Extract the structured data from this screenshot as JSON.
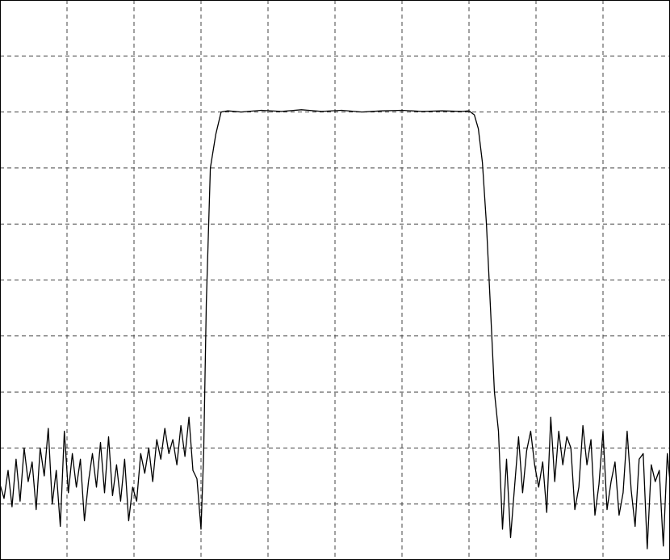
{
  "chart_data": {
    "type": "line",
    "title": "",
    "xlabel": "",
    "ylabel": "",
    "xlim": [
      0,
      10
    ],
    "ylim": [
      0,
      10
    ],
    "grid": true,
    "legend": "none",
    "colors": {
      "background": "#ffffff",
      "grid": "#444444",
      "frame": "#000000",
      "trace": "#000000"
    },
    "series": [
      {
        "x": [
          0.0,
          0.06,
          0.12,
          0.18,
          0.24,
          0.3,
          0.36,
          0.42,
          0.48,
          0.54,
          0.6,
          0.66,
          0.72,
          0.78,
          0.84,
          0.9,
          0.96,
          1.02,
          1.08,
          1.14,
          1.2,
          1.26,
          1.32,
          1.38,
          1.44,
          1.5,
          1.56,
          1.62,
          1.68,
          1.74,
          1.8,
          1.86,
          1.92,
          1.98,
          2.04,
          2.1,
          2.16,
          2.22,
          2.28,
          2.34,
          2.4,
          2.46,
          2.52,
          2.58,
          2.64,
          2.7,
          2.76,
          2.82,
          2.88,
          2.94,
          3.0,
          3.04,
          3.08,
          3.14,
          3.22,
          3.3,
          3.4,
          3.6,
          3.9,
          4.2,
          4.5,
          4.8,
          5.1,
          5.4,
          5.7,
          6.0,
          6.3,
          6.6,
          6.9,
          7.0,
          7.08,
          7.14,
          7.2,
          7.26,
          7.32,
          7.38,
          7.44,
          7.5,
          7.56,
          7.62,
          7.68,
          7.74,
          7.8,
          7.86,
          7.92,
          7.98,
          8.04,
          8.1,
          8.16,
          8.22,
          8.28,
          8.34,
          8.4,
          8.46,
          8.52,
          8.58,
          8.64,
          8.7,
          8.76,
          8.82,
          8.88,
          8.94,
          9.0,
          9.06,
          9.12,
          9.18,
          9.24,
          9.3,
          9.36,
          9.42,
          9.48,
          9.54,
          9.6,
          9.66,
          9.72,
          9.78,
          9.84,
          9.9,
          9.96,
          10.0
        ],
        "y": [
          1.35,
          1.1,
          1.6,
          0.95,
          1.8,
          1.05,
          2.0,
          1.4,
          1.75,
          0.9,
          2.0,
          1.5,
          2.35,
          1.0,
          1.6,
          0.6,
          2.3,
          1.2,
          1.9,
          1.3,
          1.8,
          0.7,
          1.4,
          1.9,
          1.3,
          2.1,
          1.2,
          2.2,
          1.15,
          1.7,
          1.05,
          1.8,
          0.7,
          1.3,
          1.05,
          1.9,
          1.55,
          2.0,
          1.4,
          2.15,
          1.8,
          2.35,
          1.9,
          2.15,
          1.7,
          2.4,
          1.85,
          2.55,
          1.6,
          1.45,
          0.55,
          1.9,
          4.6,
          7.0,
          7.6,
          8.0,
          8.02,
          8.0,
          8.03,
          8.01,
          8.04,
          8.01,
          8.03,
          8.0,
          8.02,
          8.03,
          8.01,
          8.02,
          8.01,
          8.02,
          7.95,
          7.7,
          7.1,
          6.0,
          4.5,
          3.0,
          2.3,
          0.55,
          1.8,
          0.4,
          1.3,
          2.2,
          1.2,
          1.95,
          2.3,
          1.7,
          1.3,
          1.75,
          0.85,
          2.55,
          1.4,
          2.3,
          1.7,
          2.2,
          2.0,
          0.9,
          1.3,
          2.4,
          1.7,
          2.15,
          0.8,
          1.35,
          2.3,
          0.9,
          1.4,
          1.75,
          0.8,
          1.2,
          2.3,
          1.25,
          0.6,
          1.8,
          1.9,
          0.2,
          1.7,
          1.4,
          1.6,
          0.25,
          1.9,
          1.4
        ]
      }
    ]
  }
}
